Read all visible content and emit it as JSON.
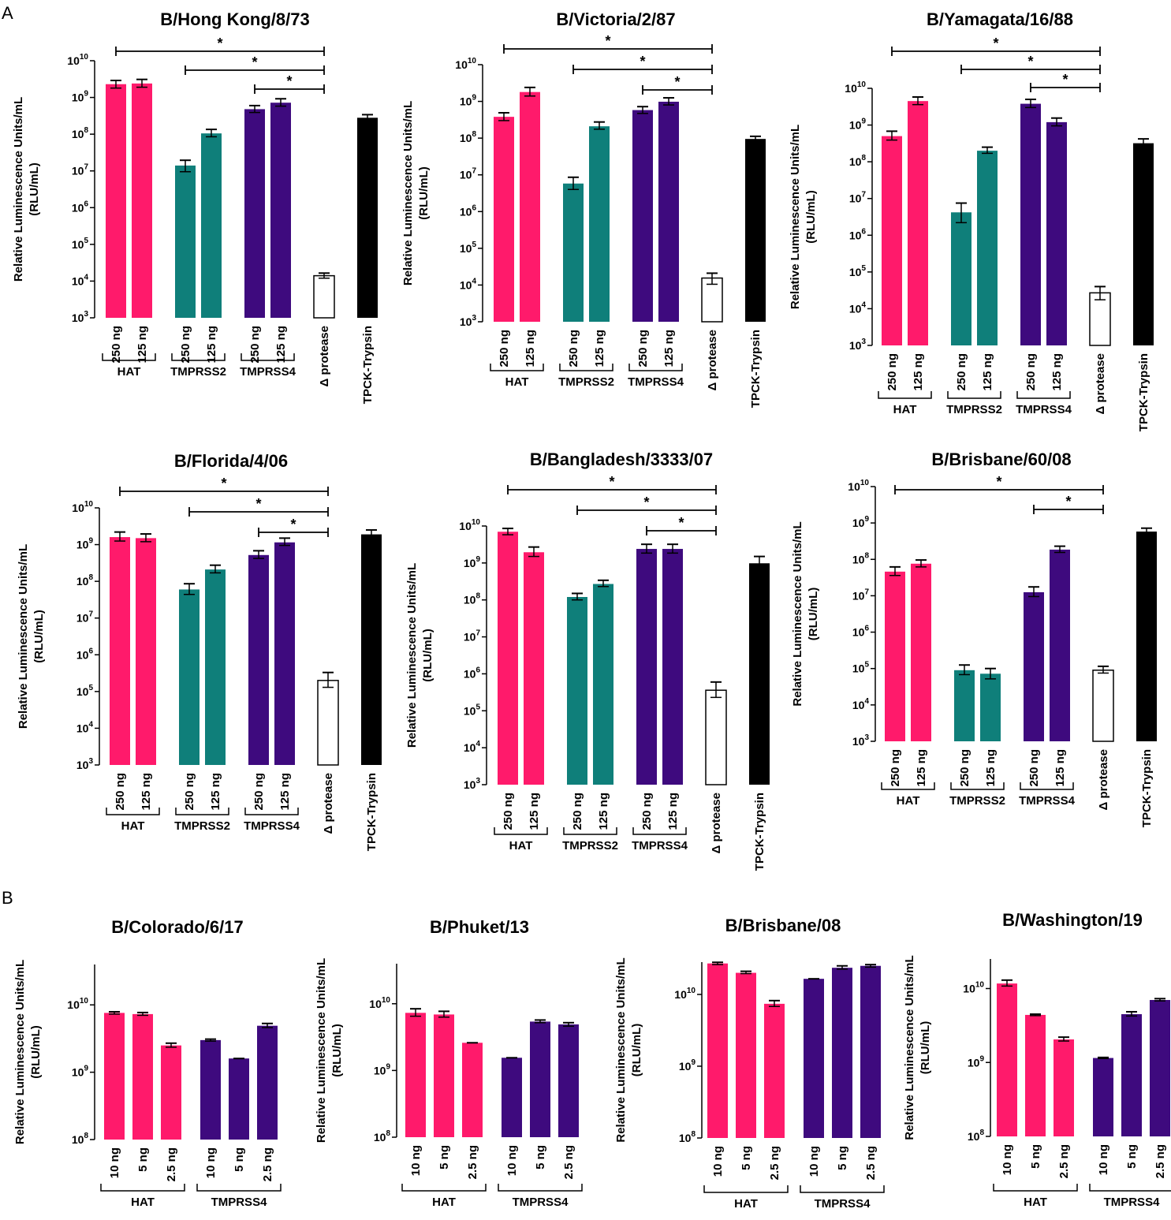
{
  "panel_labels": [
    "A",
    "B"
  ],
  "chart_data": [
    {
      "type": "bar",
      "panel": "A",
      "title": "B/Hong Kong/8/73",
      "ylabel": "Relative Luminescence Units/mL",
      "ylabel2": "(RLU/mL)",
      "yscale": "log",
      "ylim_exp": [
        3,
        10
      ],
      "categories": [
        "250 ng",
        "125 ng",
        "250 ng",
        "125 ng",
        "250 ng",
        "125 ng",
        "Δ protease",
        "TPCK-Trypsin"
      ],
      "values": [
        2300000000.0,
        2400000000.0,
        14000000.0,
        105000000.0,
        480000000.0,
        720000000.0,
        14000.0,
        280000000.0
      ],
      "err_low": [
        1800000000.0,
        1900000000.0,
        9500000.0,
        85000000.0,
        390000000.0,
        580000000.0,
        12000.0,
        240000000.0
      ],
      "err_high": [
        2900000000.0,
        3100000000.0,
        19500000.0,
        135000000.0,
        600000000.0,
        920000000.0,
        16500.0,
        340000000.0
      ],
      "colors": [
        "#ff1a6b",
        "#ff1a6b",
        "#0f7f7a",
        "#0f7f7a",
        "#3e0a7e",
        "#3e0a7e",
        "#ffffff",
        "#000000"
      ],
      "groups": [
        {
          "label": "HAT",
          "from": 0,
          "to": 1
        },
        {
          "label": "TMPRSS2",
          "from": 2,
          "to": 3
        },
        {
          "label": "TMPRSS4",
          "from": 4,
          "to": 5
        }
      ],
      "significance": [
        {
          "from": 0,
          "to": 6,
          "label": "*"
        },
        {
          "from": 2,
          "to": 6,
          "label": "*"
        },
        {
          "from": 4,
          "to": 6,
          "label": "*"
        }
      ]
    },
    {
      "type": "bar",
      "panel": "A",
      "title": "B/Victoria/2/87",
      "ylabel": "Relative Luminescence Units/mL",
      "ylabel2": "(RLU/mL)",
      "yscale": "log",
      "ylim_exp": [
        3,
        10
      ],
      "categories": [
        "250 ng",
        "125 ng",
        "250 ng",
        "125 ng",
        "250 ng",
        "125 ng",
        "Δ protease",
        "TPCK-Trypsin"
      ],
      "values": [
        380000000.0,
        1800000000.0,
        5800000.0,
        210000000.0,
        580000000.0,
        980000000.0,
        15500.0,
        95000000.0
      ],
      "err_low": [
        300000000.0,
        1400000000.0,
        4000000.0,
        175000000.0,
        470000000.0,
        800000000.0,
        10500.0,
        85000000.0
      ],
      "err_high": [
        490000000.0,
        2400000000.0,
        8600000.0,
        275000000.0,
        720000000.0,
        1250000000.0,
        21000.0,
        112000000.0
      ],
      "colors": [
        "#ff1a6b",
        "#ff1a6b",
        "#0f7f7a",
        "#0f7f7a",
        "#3e0a7e",
        "#3e0a7e",
        "#ffffff",
        "#000000"
      ],
      "groups": [
        {
          "label": "HAT",
          "from": 0,
          "to": 1
        },
        {
          "label": "TMPRSS2",
          "from": 2,
          "to": 3
        },
        {
          "label": "TMPRSS4",
          "from": 4,
          "to": 5
        }
      ],
      "significance": [
        {
          "from": 0,
          "to": 6,
          "label": "*"
        },
        {
          "from": 2,
          "to": 6,
          "label": "*"
        },
        {
          "from": 4,
          "to": 6,
          "label": "*"
        }
      ]
    },
    {
      "type": "bar",
      "panel": "A",
      "title": "B/Yamagata/16/88",
      "ylabel": "Relative Luminescence Units/mL",
      "ylabel2": "(RLU/mL)",
      "yscale": "log",
      "ylim_exp": [
        3,
        10
      ],
      "categories": [
        "250 ng",
        "125 ng",
        "250 ng",
        "125 ng",
        "250 ng",
        "125 ng",
        "Δ protease",
        "TPCK-Trypsin"
      ],
      "values": [
        500000000.0,
        4500000000.0,
        4200000.0,
        200000000.0,
        3800000000.0,
        1200000000.0,
        27000.0,
        320000000.0
      ],
      "err_low": [
        390000000.0,
        3600000000.0,
        2200000.0,
        170000000.0,
        3000000000.0,
        950000000.0,
        17500.0,
        250000000.0
      ],
      "err_high": [
        680000000.0,
        5800000000.0,
        7500000.0,
        250000000.0,
        5000000000.0,
        1550000000.0,
        40000.0,
        420000000.0
      ],
      "colors": [
        "#ff1a6b",
        "#ff1a6b",
        "#0f7f7a",
        "#0f7f7a",
        "#3e0a7e",
        "#3e0a7e",
        "#ffffff",
        "#000000"
      ],
      "groups": [
        {
          "label": "HAT",
          "from": 0,
          "to": 1
        },
        {
          "label": "TMPRSS2",
          "from": 2,
          "to": 3
        },
        {
          "label": "TMPRSS4",
          "from": 4,
          "to": 5
        }
      ],
      "significance": [
        {
          "from": 0,
          "to": 6,
          "label": "*"
        },
        {
          "from": 2,
          "to": 6,
          "label": "*"
        },
        {
          "from": 4,
          "to": 6,
          "label": "*"
        }
      ]
    },
    {
      "type": "bar",
      "panel": "A",
      "title": "B/Florida/4/06",
      "ylabel": "Relative Luminescence Units/mL",
      "ylabel2": "(RLU/mL)",
      "yscale": "log",
      "ylim_exp": [
        3,
        10
      ],
      "categories": [
        "250 ng",
        "125 ng",
        "250 ng",
        "125 ng",
        "250 ng",
        "125 ng",
        "Δ protease",
        "TPCK-Trypsin"
      ],
      "values": [
        1600000000.0,
        1500000000.0,
        60000000.0,
        210000000.0,
        520000000.0,
        1150000000.0,
        200000.0,
        1900000000.0
      ],
      "err_low": [
        1250000000.0,
        1200000000.0,
        44000000.0,
        170000000.0,
        420000000.0,
        950000000.0,
        130000.0,
        1550000000.0
      ],
      "err_high": [
        2200000000.0,
        1950000000.0,
        86000000.0,
        275000000.0,
        680000000.0,
        1500000000.0,
        330000.0,
        2500000000.0
      ],
      "colors": [
        "#ff1a6b",
        "#ff1a6b",
        "#0f7f7a",
        "#0f7f7a",
        "#3e0a7e",
        "#3e0a7e",
        "#ffffff",
        "#000000"
      ],
      "groups": [
        {
          "label": "HAT",
          "from": 0,
          "to": 1
        },
        {
          "label": "TMPRSS2",
          "from": 2,
          "to": 3
        },
        {
          "label": "TMPRSS4",
          "from": 4,
          "to": 5
        }
      ],
      "significance": [
        {
          "from": 0,
          "to": 6,
          "label": "*"
        },
        {
          "from": 2,
          "to": 6,
          "label": "*"
        },
        {
          "from": 4,
          "to": 6,
          "label": "*"
        }
      ]
    },
    {
      "type": "bar",
      "panel": "A",
      "title": "B/Bangladesh/3333/07",
      "ylabel": "Relative Luminescence Units/mL",
      "ylabel2": "(RLU/mL)",
      "yscale": "log",
      "ylim_exp": [
        3,
        10
      ],
      "categories": [
        "250 ng",
        "125 ng",
        "250 ng",
        "125 ng",
        "250 ng",
        "125 ng",
        "Δ protease",
        "TPCK-Trypsin"
      ],
      "values": [
        7000000000.0,
        1950000000.0,
        120000000.0,
        270000000.0,
        2400000000.0,
        2400000000.0,
        360000.0,
        980000000.0
      ],
      "err_low": [
        5800000000.0,
        1500000000.0,
        100000000.0,
        230000000.0,
        1850000000.0,
        1850000000.0,
        230000.0,
        750000000.0
      ],
      "err_high": [
        8600000000.0,
        2700000000.0,
        150000000.0,
        340000000.0,
        3200000000.0,
        3200000000.0,
        600000.0,
        1500000000.0
      ],
      "colors": [
        "#ff1a6b",
        "#ff1a6b",
        "#0f7f7a",
        "#0f7f7a",
        "#3e0a7e",
        "#3e0a7e",
        "#ffffff",
        "#000000"
      ],
      "groups": [
        {
          "label": "HAT",
          "from": 0,
          "to": 1
        },
        {
          "label": "TMPRSS2",
          "from": 2,
          "to": 3
        },
        {
          "label": "TMPRSS4",
          "from": 4,
          "to": 5
        }
      ],
      "significance": [
        {
          "from": 0,
          "to": 6,
          "label": "*"
        },
        {
          "from": 2,
          "to": 6,
          "label": "*"
        },
        {
          "from": 4,
          "to": 6,
          "label": "*"
        }
      ]
    },
    {
      "type": "bar",
      "panel": "A",
      "title": "B/Brisbane/60/08",
      "ylabel": "Relative Luminescence Units/mL",
      "ylabel2": "(RLU/mL)",
      "yscale": "log",
      "ylim_exp": [
        3,
        10
      ],
      "categories": [
        "250 ng",
        "125 ng",
        "250 ng",
        "125 ng",
        "250 ng",
        "125 ng",
        "Δ protease",
        "TPCK-Trypsin"
      ],
      "values": [
        46000000.0,
        76000000.0,
        90000.0,
        72000.0,
        12500000.0,
        185000000.0,
        90000.0,
        580000000.0
      ],
      "err_low": [
        36000000.0,
        62000000.0,
        68000.0,
        52000.0,
        9500000.0,
        155000000.0,
        75000.0,
        480000000.0
      ],
      "err_high": [
        62000000.0,
        96000000.0,
        125000.0,
        100000.0,
        17500000.0,
        230000000.0,
        115000.0,
        720000000.0
      ],
      "colors": [
        "#ff1a6b",
        "#ff1a6b",
        "#0f7f7a",
        "#0f7f7a",
        "#3e0a7e",
        "#3e0a7e",
        "#ffffff",
        "#000000"
      ],
      "groups": [
        {
          "label": "HAT",
          "from": 0,
          "to": 1
        },
        {
          "label": "TMPRSS2",
          "from": 2,
          "to": 3
        },
        {
          "label": "TMPRSS4",
          "from": 4,
          "to": 5
        }
      ],
      "significance": [
        {
          "from": 0,
          "to": 6,
          "label": "*"
        },
        {
          "from": 4,
          "to": 6,
          "label": "*"
        }
      ]
    },
    {
      "type": "bar",
      "panel": "B",
      "title": "B/Colorado/6/17",
      "ylabel": "Relative Luminescence Units/mL",
      "ylabel2": "(RLU/mL)",
      "yscale": "log",
      "ylim_exp": [
        8,
        10.6
      ],
      "categories": [
        "10 ng",
        "5 ng",
        "2.5 ng",
        "10 ng",
        "5 ng",
        "2.5 ng"
      ],
      "values": [
        7600000000.0,
        7300000000.0,
        2500000000.0,
        3000000000.0,
        1600000000.0,
        4900000000.0
      ],
      "err_low": [
        7300000000.0,
        7000000000.0,
        2350000000.0,
        2900000000.0,
        1600000000.0,
        4600000000.0
      ],
      "err_high": [
        7900000000.0,
        7700000000.0,
        2700000000.0,
        3100000000.0,
        1600000000.0,
        5300000000.0
      ],
      "colors": [
        "#ff1a6b",
        "#ff1a6b",
        "#ff1a6b",
        "#3e0a7e",
        "#3e0a7e",
        "#3e0a7e"
      ],
      "groups": [
        {
          "label": "HAT",
          "from": 0,
          "to": 2
        },
        {
          "label": "TMPRSS4",
          "from": 3,
          "to": 5
        }
      ],
      "significance": []
    },
    {
      "type": "bar",
      "panel": "B",
      "title": "B/Phuket/13",
      "ylabel": "Relative Luminescence Units/mL",
      "ylabel2": "(RLU/mL)",
      "yscale": "log",
      "ylim_exp": [
        8,
        10.6
      ],
      "categories": [
        "10 ng",
        "5 ng",
        "2.5 ng",
        "10 ng",
        "5 ng",
        "2.5 ng"
      ],
      "values": [
        7300000000.0,
        6900000000.0,
        2600000000.0,
        1550000000.0,
        5400000000.0,
        4900000000.0
      ],
      "err_low": [
        6500000000.0,
        6300000000.0,
        2600000000.0,
        1550000000.0,
        5200000000.0,
        4600000000.0
      ],
      "err_high": [
        8400000000.0,
        7700000000.0,
        2600000000.0,
        1550000000.0,
        5700000000.0,
        5200000000.0
      ],
      "colors": [
        "#ff1a6b",
        "#ff1a6b",
        "#ff1a6b",
        "#3e0a7e",
        "#3e0a7e",
        "#3e0a7e"
      ],
      "groups": [
        {
          "label": "HAT",
          "from": 0,
          "to": 2
        },
        {
          "label": "TMPRSS4",
          "from": 3,
          "to": 5
        }
      ],
      "significance": []
    },
    {
      "type": "bar",
      "panel": "B",
      "title": "B/Brisbane/08",
      "ylabel": "Relative Luminescence Units/mL",
      "ylabel2": "(RLU/mL)",
      "yscale": "log",
      "ylim_exp": [
        8,
        10.45
      ],
      "categories": [
        "10 ng",
        "5 ng",
        "2.5 ng",
        "10 ng",
        "5 ng",
        "2.5 ng"
      ],
      "values": [
        27000000000.0,
        20000000000.0,
        7400000000.0,
        16500000000.0,
        23500000000.0,
        25000000000.0
      ],
      "err_low": [
        26000000000.0,
        19500000000.0,
        6800000000.0,
        16500000000.0,
        22500000000.0,
        24000000000.0
      ],
      "err_high": [
        28000000000.0,
        21000000000.0,
        8200000000.0,
        16500000000.0,
        25000000000.0,
        26000000000.0
      ],
      "colors": [
        "#ff1a6b",
        "#ff1a6b",
        "#ff1a6b",
        "#3e0a7e",
        "#3e0a7e",
        "#3e0a7e"
      ],
      "groups": [
        {
          "label": "HAT",
          "from": 0,
          "to": 2
        },
        {
          "label": "TMPRSS4",
          "from": 3,
          "to": 5
        }
      ],
      "significance": []
    },
    {
      "type": "bar",
      "panel": "B",
      "title": "B/Washington/19",
      "ylabel": "Relative Luminescence Units/mL",
      "ylabel2": "(RLU/mL)",
      "yscale": "log",
      "ylim_exp": [
        8,
        10.4
      ],
      "categories": [
        "10 ng",
        "5 ng",
        "2.5 ng",
        "10 ng",
        "5 ng",
        "2.5 ng"
      ],
      "values": [
        11700000000.0,
        4400000000.0,
        2050000000.0,
        1150000000.0,
        4500000000.0,
        7000000000.0
      ],
      "err_low": [
        10800000000.0,
        4300000000.0,
        1950000000.0,
        1130000000.0,
        4250000000.0,
        6800000000.0
      ],
      "err_high": [
        13000000000.0,
        4500000000.0,
        2200000000.0,
        1170000000.0,
        4850000000.0,
        7300000000.0
      ],
      "colors": [
        "#ff1a6b",
        "#ff1a6b",
        "#ff1a6b",
        "#3e0a7e",
        "#3e0a7e",
        "#3e0a7e"
      ],
      "groups": [
        {
          "label": "HAT",
          "from": 0,
          "to": 2
        },
        {
          "label": "TMPRSS4",
          "from": 3,
          "to": 5
        }
      ],
      "significance": []
    }
  ]
}
